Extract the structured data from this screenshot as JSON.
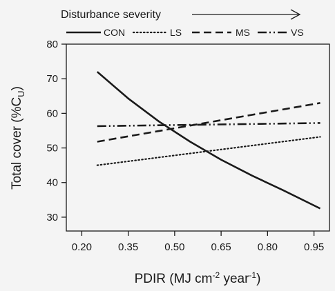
{
  "header": {
    "label": "Disturbance severity"
  },
  "chart_data": {
    "type": "line",
    "xlabel": {
      "main": "PDIR (MJ cm",
      "sup1": "-2",
      "mid": " year",
      "sup2": "-1",
      "end": ")"
    },
    "ylabel": {
      "main": "Total cover (%C",
      "sub": "U",
      "end": ")"
    },
    "xlim": [
      0.15,
      1.0
    ],
    "ylim": [
      26,
      80
    ],
    "xticks": [
      0.2,
      0.35,
      0.5,
      0.65,
      0.8,
      0.95
    ],
    "xtick_labels": [
      "0.20",
      "0.35",
      "0.50",
      "0.65",
      "0.80",
      "0.95"
    ],
    "yticks": [
      30,
      40,
      50,
      60,
      70,
      80
    ],
    "ytick_labels": [
      "30",
      "40",
      "50",
      "60",
      "70",
      "80"
    ],
    "legend_position": "top",
    "series": [
      {
        "name": "CON",
        "style": "solid",
        "x": [
          0.25,
          0.35,
          0.45,
          0.55,
          0.65,
          0.75,
          0.85,
          0.97
        ],
        "y": [
          72.0,
          64.3,
          57.6,
          51.8,
          46.6,
          42.0,
          37.8,
          32.5
        ]
      },
      {
        "name": "LS",
        "style": "dotted",
        "x": [
          0.25,
          0.97
        ],
        "y": [
          45.0,
          53.2
        ]
      },
      {
        "name": "MS",
        "style": "dashed",
        "x": [
          0.25,
          0.97
        ],
        "y": [
          51.8,
          63.0
        ]
      },
      {
        "name": "VS",
        "style": "dashdotdot",
        "x": [
          0.25,
          0.97
        ],
        "y": [
          56.3,
          57.2
        ]
      }
    ]
  }
}
